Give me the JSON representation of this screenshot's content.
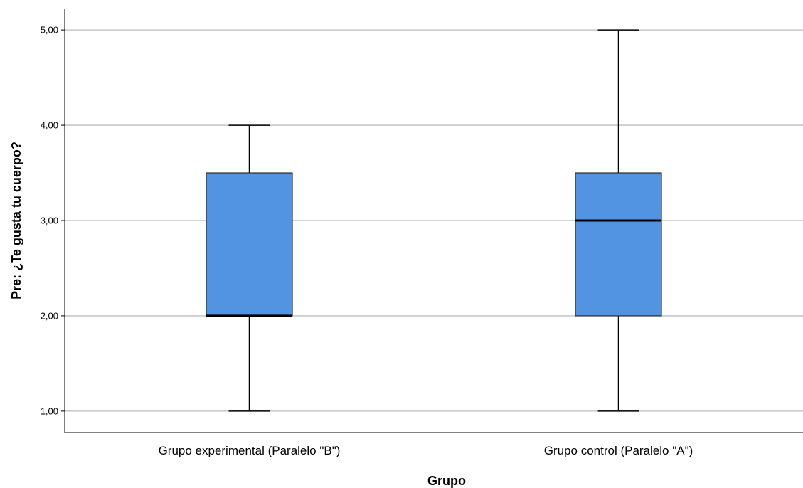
{
  "chart_data": {
    "type": "boxplot",
    "xlabel": "Grupo",
    "ylabel": "Pre: ¿Te gusta tu cuerpo?",
    "ylim": [
      0.775,
      5.225
    ],
    "yticks": [
      1,
      2,
      3,
      4,
      5
    ],
    "ytick_labels": [
      "1,00",
      "2,00",
      "3,00",
      "4,00",
      "5,00"
    ],
    "grid": true,
    "box_color": "#5294E2",
    "categories": [
      "Grupo experimental (Paralelo \"B\")",
      "Grupo control (Paralelo \"A\")"
    ],
    "boxes": [
      {
        "min": 1,
        "q1": 2,
        "median": 2,
        "q3": 3.5,
        "max": 4
      },
      {
        "min": 1,
        "q1": 2,
        "median": 3,
        "q3": 3.5,
        "max": 5
      }
    ]
  }
}
